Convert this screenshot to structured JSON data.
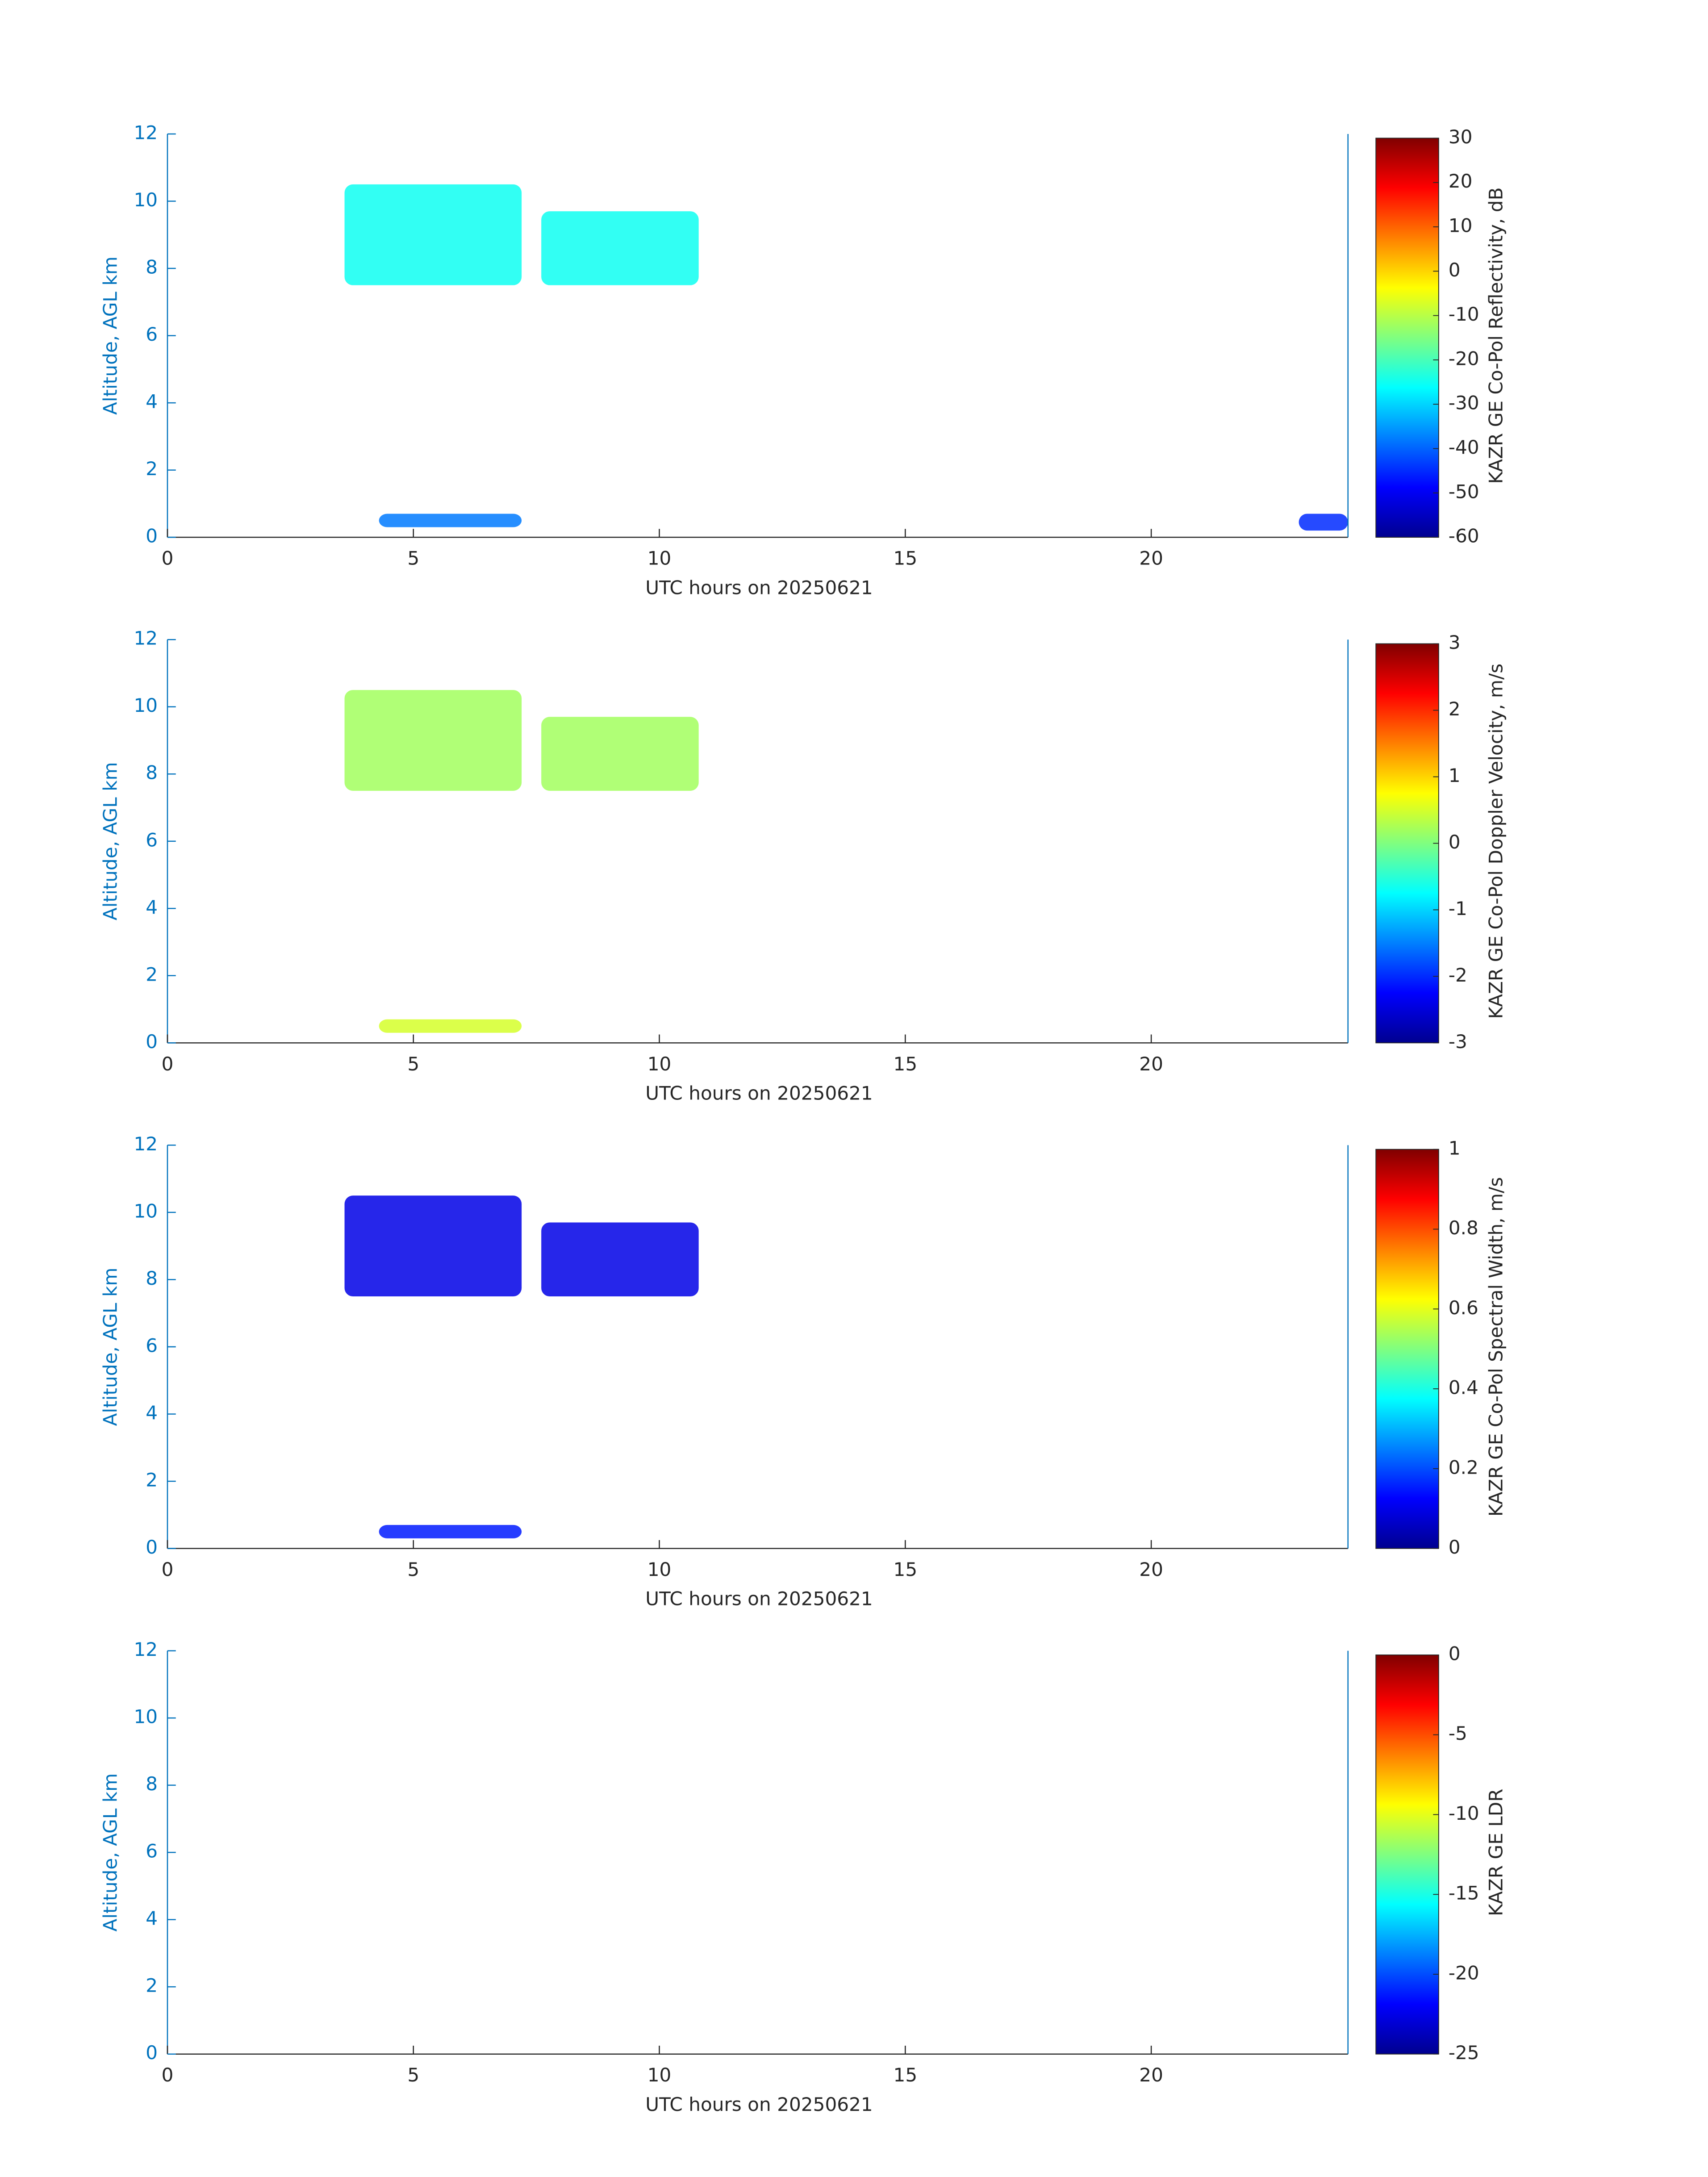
{
  "chart_data": [
    {
      "type": "heatmap",
      "xlabel": "UTC hours on 20250621",
      "ylabel": "Altitude, AGL km",
      "xlim": [
        0,
        24
      ],
      "ylim": [
        0,
        12
      ],
      "xticks": [
        0,
        5,
        10,
        15,
        20
      ],
      "yticks": [
        0,
        2,
        4,
        6,
        8,
        10,
        12
      ],
      "colormap": "jet",
      "colorbar_label": "KAZR GE Co-Pol Reflectivity, dB",
      "clim": [
        -60,
        30
      ],
      "cticks": [
        -60,
        -50,
        -40,
        -30,
        -20,
        -10,
        0,
        10,
        20,
        30
      ],
      "regions": [
        {
          "x0": 3.6,
          "x1": 7.2,
          "y0": 7.5,
          "y1": 10.5,
          "value": -25
        },
        {
          "x0": 7.6,
          "x1": 10.8,
          "y0": 7.5,
          "y1": 9.7,
          "value": -25
        },
        {
          "x0": 4.3,
          "x1": 7.2,
          "y0": 0.3,
          "y1": 0.7,
          "value": -38
        },
        {
          "x0": 23,
          "x1": 24,
          "y0": 0.2,
          "y1": 0.7,
          "value": -45
        }
      ]
    },
    {
      "type": "heatmap",
      "xlabel": "UTC hours on 20250621",
      "ylabel": "Altitude, AGL km",
      "xlim": [
        0,
        24
      ],
      "ylim": [
        0,
        12
      ],
      "xticks": [
        0,
        5,
        10,
        15,
        20
      ],
      "yticks": [
        0,
        2,
        4,
        6,
        8,
        10,
        12
      ],
      "colormap": "jet",
      "colorbar_label": "KAZR GE Co-Pol Doppler Velocity, m/s",
      "clim": [
        -3,
        3
      ],
      "cticks": [
        -3,
        -2,
        -1,
        0,
        1,
        2,
        3
      ],
      "regions": [
        {
          "x0": 3.6,
          "x1": 7.2,
          "y0": 7.5,
          "y1": 10.5,
          "value": 0.2
        },
        {
          "x0": 7.6,
          "x1": 10.8,
          "y0": 7.5,
          "y1": 9.7,
          "value": 0.2
        },
        {
          "x0": 4.3,
          "x1": 7.2,
          "y0": 0.3,
          "y1": 0.7,
          "value": 0.5
        }
      ]
    },
    {
      "type": "heatmap",
      "xlabel": "UTC hours on 20250621",
      "ylabel": "Altitude, AGL km",
      "xlim": [
        0,
        24
      ],
      "ylim": [
        0,
        12
      ],
      "xticks": [
        0,
        5,
        10,
        15,
        20
      ],
      "yticks": [
        0,
        2,
        4,
        6,
        8,
        10,
        12
      ],
      "colormap": "jet",
      "colorbar_label": "KAZR GE Co-Pol Spectral Width, m/s",
      "clim": [
        0,
        1
      ],
      "cticks": [
        0,
        0.2,
        0.4,
        0.6,
        0.8,
        1
      ],
      "regions": [
        {
          "x0": 3.6,
          "x1": 7.2,
          "y0": 7.5,
          "y1": 10.5,
          "value": 0.1
        },
        {
          "x0": 7.6,
          "x1": 10.8,
          "y0": 7.5,
          "y1": 9.7,
          "value": 0.1
        },
        {
          "x0": 4.3,
          "x1": 7.2,
          "y0": 0.3,
          "y1": 0.7,
          "value": 0.15
        }
      ]
    },
    {
      "type": "heatmap",
      "xlabel": "UTC hours on 20250621",
      "ylabel": "Altitude, AGL km",
      "xlim": [
        0,
        24
      ],
      "ylim": [
        0,
        12
      ],
      "xticks": [
        0,
        5,
        10,
        15,
        20
      ],
      "yticks": [
        0,
        2,
        4,
        6,
        8,
        10,
        12
      ],
      "colormap": "jet",
      "colorbar_label": "KAZR GE LDR",
      "clim": [
        -25,
        0
      ],
      "cticks": [
        -25,
        -20,
        -15,
        -10,
        -5,
        0
      ]
    }
  ]
}
